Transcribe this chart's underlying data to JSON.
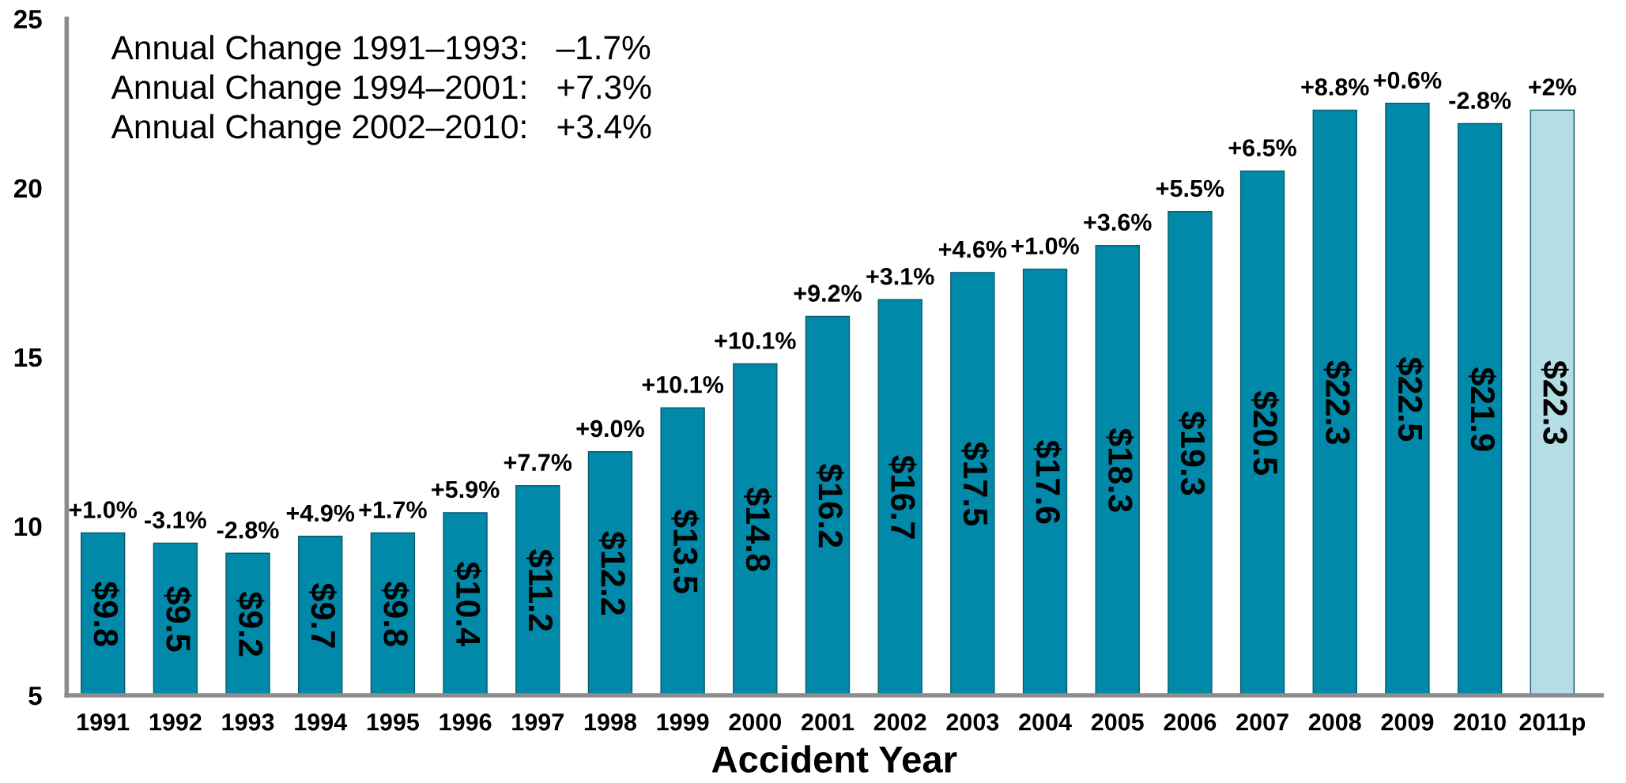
{
  "chart_data": {
    "type": "bar",
    "xlabel": "Accident Year",
    "categories": [
      "1991",
      "1992",
      "1993",
      "1994",
      "1995",
      "1996",
      "1997",
      "1998",
      "1999",
      "2000",
      "2001",
      "2002",
      "2003",
      "2004",
      "2005",
      "2006",
      "2007",
      "2008",
      "2009",
      "2010",
      "2011p"
    ],
    "values": [
      9.8,
      9.5,
      9.2,
      9.7,
      9.8,
      10.4,
      11.2,
      12.2,
      13.5,
      14.8,
      16.2,
      16.7,
      17.5,
      17.6,
      18.3,
      19.3,
      20.5,
      22.3,
      22.5,
      21.9,
      22.3
    ],
    "value_labels": [
      "$9.8",
      "$9.5",
      "$9.2",
      "$9.7",
      "$9.8",
      "$10.4",
      "$11.2",
      "$12.2",
      "$13.5",
      "$14.8",
      "$16.2",
      "$16.7",
      "$17.5",
      "$17.6",
      "$18.3",
      "$19.3",
      "$20.5",
      "$22.3",
      "$22.5",
      "$21.9",
      "$22.3"
    ],
    "colors": [
      "#0089a8",
      "#0089a8",
      "#0089a8",
      "#0089a8",
      "#0089a8",
      "#0089a8",
      "#0089a8",
      "#0089a8",
      "#0089a8",
      "#0089a8",
      "#0089a8",
      "#0089a8",
      "#0089a8",
      "#0089a8",
      "#0089a8",
      "#0089a8",
      "#0089a8",
      "#0089a8",
      "#0089a8",
      "#0089a8",
      "#b4dde6"
    ],
    "ylim": [
      5,
      25
    ],
    "yticks": [
      5,
      10,
      15,
      20,
      25
    ],
    "grid": false,
    "annotations": [
      "Annual Change 1991–1993:   –1.7%",
      "Annual Change 1994–2001:   +7.3%",
      "Annual Change 2002–2010:   +3.4%",
      {
        "text": "+1.0%",
        "x": "1991",
        "y": 9.8
      },
      {
        "text": "-3.1%",
        "x": "1992",
        "y": 9.5
      },
      {
        "text": "-2.8%",
        "x": "1993",
        "y": 9.2
      },
      {
        "text": "+4.9%",
        "x": "1994",
        "y": 9.7
      },
      {
        "text": "+1.7%",
        "x": "1995",
        "y": 9.8
      },
      {
        "text": "+5.9%",
        "x": "1996",
        "y": 10.4
      },
      {
        "text": "+7.7%",
        "x": "1997",
        "y": 11.2
      },
      {
        "text": "+9.0%",
        "x": "1998",
        "y": 12.2
      },
      {
        "text": "+10.1%",
        "x": "1999",
        "y": 13.5
      },
      {
        "text": "+10.1%",
        "x": "2000",
        "y": 14.8
      },
      {
        "text": "+9.2%",
        "x": "2001",
        "y": 16.2
      },
      {
        "text": "+3.1%",
        "x": "2002",
        "y": 16.7
      },
      {
        "text": "+4.6%",
        "x": "2003",
        "y": 17.5
      },
      {
        "text": "+1.0%",
        "x": "2004",
        "y": 17.6
      },
      {
        "text": "+3.6%",
        "x": "2005",
        "y": 18.3
      },
      {
        "text": "+5.5%",
        "x": "2006",
        "y": 19.3
      },
      {
        "text": "+6.5%",
        "x": "2007",
        "y": 20.5
      },
      {
        "text": "+8.8%",
        "x": "2008",
        "y": 22.3
      },
      {
        "text": "+0.6%",
        "x": "2009",
        "y": 22.5
      },
      {
        "text": "-2.8%",
        "x": "2010",
        "y": 21.9
      },
      {
        "text": "+2%",
        "x": "2011p",
        "y": 22.3
      }
    ]
  }
}
